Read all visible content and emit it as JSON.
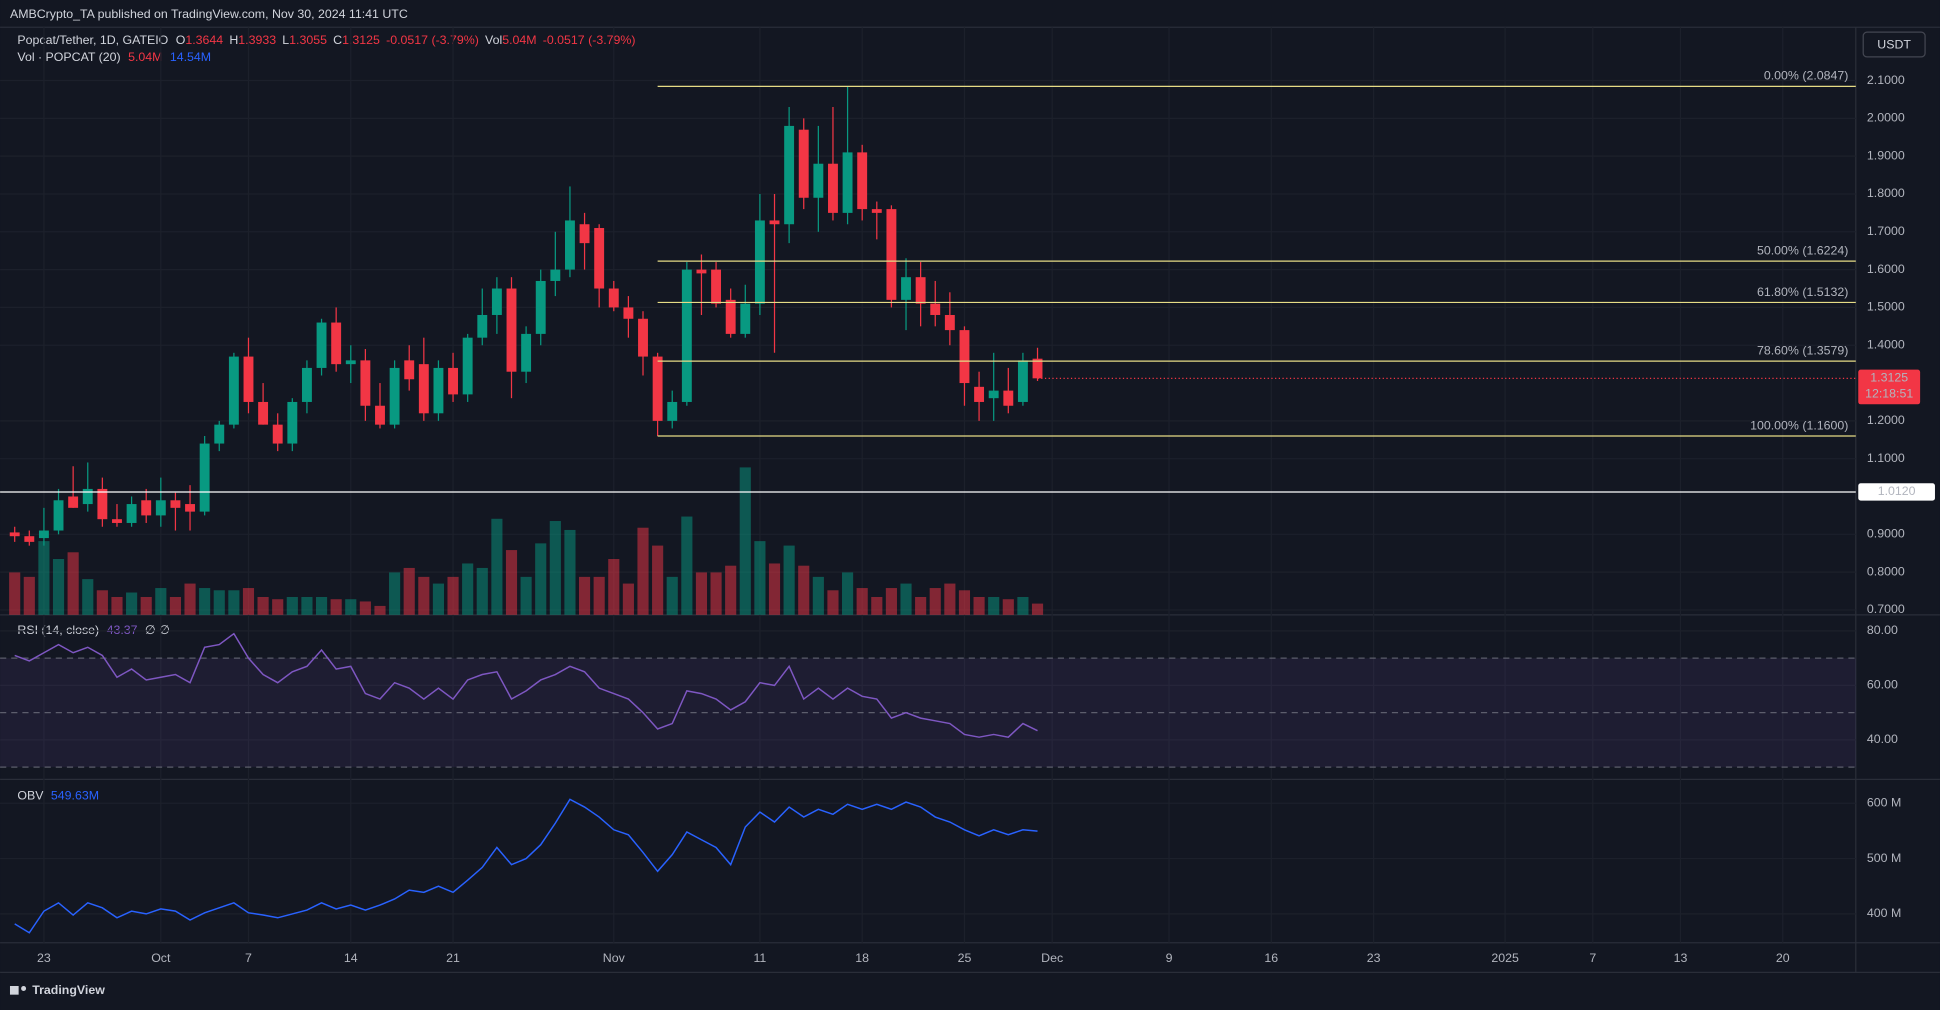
{
  "header": {
    "published": "AMBCrypto_TA published on TradingView.com, Nov 30, 2024 11:41 UTC",
    "brand": "TradingView"
  },
  "chart_data": [
    {
      "type": "candlestick",
      "title": "Popcat/Tether, 1D, GATEIO",
      "currency": "USDT",
      "ohlc_keys": [
        "O",
        "H",
        "L",
        "C"
      ],
      "change": "-0.0517 (-3.79%)",
      "volume_key": "Vol",
      "up_color": "#089981",
      "down_color": "#f23645",
      "x": [
        "2024-09-21",
        "2024-09-22",
        "2024-09-23",
        "2024-09-24",
        "2024-09-25",
        "2024-09-26",
        "2024-09-27",
        "2024-09-28",
        "2024-09-29",
        "2024-09-30",
        "2024-10-01",
        "2024-10-02",
        "2024-10-03",
        "2024-10-04",
        "2024-10-05",
        "2024-10-06",
        "2024-10-07",
        "2024-10-08",
        "2024-10-09",
        "2024-10-10",
        "2024-10-11",
        "2024-10-12",
        "2024-10-13",
        "2024-10-14",
        "2024-10-15",
        "2024-10-16",
        "2024-10-17",
        "2024-10-18",
        "2024-10-19",
        "2024-10-20",
        "2024-10-21",
        "2024-10-22",
        "2024-10-23",
        "2024-10-24",
        "2024-10-25",
        "2024-10-26",
        "2024-10-27",
        "2024-10-28",
        "2024-10-29",
        "2024-10-30",
        "2024-10-31",
        "2024-11-01",
        "2024-11-02",
        "2024-11-03",
        "2024-11-04",
        "2024-11-05",
        "2024-11-06",
        "2024-11-07",
        "2024-11-08",
        "2024-11-09",
        "2024-11-10",
        "2024-11-11",
        "2024-11-12",
        "2024-11-13",
        "2024-11-14",
        "2024-11-15",
        "2024-11-16",
        "2024-11-17",
        "2024-11-18",
        "2024-11-19",
        "2024-11-20",
        "2024-11-21",
        "2024-11-22",
        "2024-11-23",
        "2024-11-24",
        "2024-11-25",
        "2024-11-26",
        "2024-11-27",
        "2024-11-28",
        "2024-11-29",
        "2024-11-30"
      ],
      "open": [
        0.905,
        0.895,
        0.89,
        0.91,
        1.0,
        0.98,
        1.02,
        0.94,
        0.93,
        0.99,
        0.95,
        0.99,
        0.98,
        0.96,
        1.14,
        1.19,
        1.37,
        1.25,
        1.19,
        1.14,
        1.25,
        1.34,
        1.46,
        1.35,
        1.36,
        1.24,
        1.19,
        1.36,
        1.35,
        1.22,
        1.34,
        1.27,
        1.42,
        1.48,
        1.55,
        1.33,
        1.43,
        1.57,
        1.6,
        1.72,
        1.71,
        1.55,
        1.5,
        1.47,
        1.37,
        1.2,
        1.25,
        1.6,
        1.6,
        1.52,
        1.43,
        1.51,
        1.73,
        1.72,
        1.97,
        1.79,
        1.88,
        1.75,
        1.91,
        1.76,
        1.76,
        1.52,
        1.58,
        1.51,
        1.48,
        1.44,
        1.29,
        1.26,
        1.28,
        1.25,
        1.3644
      ],
      "high": [
        0.92,
        0.91,
        0.97,
        1.02,
        1.08,
        1.09,
        1.05,
        0.98,
        1.0,
        1.02,
        1.05,
        1.01,
        1.03,
        1.16,
        1.2,
        1.38,
        1.42,
        1.3,
        1.22,
        1.26,
        1.36,
        1.47,
        1.5,
        1.4,
        1.39,
        1.3,
        1.36,
        1.4,
        1.42,
        1.36,
        1.38,
        1.43,
        1.55,
        1.58,
        1.58,
        1.45,
        1.6,
        1.7,
        1.82,
        1.75,
        1.72,
        1.57,
        1.53,
        1.49,
        1.38,
        1.28,
        1.62,
        1.64,
        1.62,
        1.55,
        1.56,
        1.8,
        1.8,
        2.03,
        2.0,
        1.98,
        2.03,
        2.0847,
        1.93,
        1.78,
        1.77,
        1.63,
        1.62,
        1.57,
        1.54,
        1.45,
        1.33,
        1.38,
        1.34,
        1.38,
        1.3933
      ],
      "low": [
        0.88,
        0.87,
        0.87,
        0.9,
        0.97,
        0.96,
        0.92,
        0.92,
        0.92,
        0.93,
        0.92,
        0.91,
        0.91,
        0.95,
        1.12,
        1.18,
        1.22,
        1.19,
        1.12,
        1.12,
        1.22,
        1.32,
        1.33,
        1.3,
        1.2,
        1.18,
        1.18,
        1.28,
        1.2,
        1.2,
        1.25,
        1.25,
        1.4,
        1.43,
        1.26,
        1.3,
        1.4,
        1.53,
        1.58,
        1.6,
        1.5,
        1.49,
        1.42,
        1.32,
        1.16,
        1.18,
        1.24,
        1.48,
        1.5,
        1.42,
        1.42,
        1.48,
        1.38,
        1.67,
        1.76,
        1.7,
        1.73,
        1.72,
        1.73,
        1.68,
        1.5,
        1.44,
        1.45,
        1.45,
        1.4,
        1.24,
        1.2,
        1.2,
        1.22,
        1.24,
        1.3055
      ],
      "close": [
        0.895,
        0.88,
        0.91,
        0.99,
        0.97,
        1.02,
        0.94,
        0.93,
        0.98,
        0.95,
        0.99,
        0.97,
        0.96,
        1.14,
        1.19,
        1.37,
        1.25,
        1.19,
        1.14,
        1.25,
        1.34,
        1.46,
        1.35,
        1.36,
        1.24,
        1.19,
        1.34,
        1.31,
        1.22,
        1.34,
        1.27,
        1.42,
        1.48,
        1.55,
        1.33,
        1.43,
        1.57,
        1.6,
        1.73,
        1.67,
        1.55,
        1.5,
        1.47,
        1.37,
        1.2,
        1.25,
        1.6,
        1.59,
        1.51,
        1.43,
        1.51,
        1.73,
        1.72,
        1.98,
        1.79,
        1.88,
        1.75,
        1.91,
        1.76,
        1.75,
        1.52,
        1.58,
        1.51,
        1.48,
        1.44,
        1.3,
        1.25,
        1.28,
        1.24,
        1.36,
        1.3125
      ],
      "countdown": "12:18:51",
      "volume": {
        "name": "Vol · POPCAT (20)",
        "legend_value": "5.04M",
        "ma_legend_value": "14.54M",
        "ylim": [
          0,
          263
        ],
        "values": [
          19,
          17,
          33,
          25,
          28,
          16,
          11,
          8,
          10,
          8,
          12,
          8,
          14,
          12,
          11,
          11,
          12,
          8,
          7,
          8,
          8,
          8,
          7,
          7,
          6,
          4,
          19,
          21,
          17,
          14,
          17,
          23,
          21,
          43,
          29,
          17,
          32,
          42,
          38,
          17,
          17,
          25,
          14,
          39,
          31,
          17,
          44,
          19,
          19,
          22,
          66,
          33,
          23,
          31,
          22,
          17,
          11,
          19,
          12,
          8,
          12,
          14,
          8,
          12,
          14,
          11,
          8,
          8,
          7,
          8,
          5.04
        ]
      },
      "xlim": [
        "2024-09-20",
        "2025-01-25"
      ],
      "xticks": [
        {
          "value": "2024-09-23",
          "label": "23"
        },
        {
          "value": "2024-10-01",
          "label": "Oct"
        },
        {
          "value": "2024-10-07",
          "label": "7"
        },
        {
          "value": "2024-10-14",
          "label": "14"
        },
        {
          "value": "2024-10-21",
          "label": "21"
        },
        {
          "value": "2024-11-01",
          "label": "Nov"
        },
        {
          "value": "2024-11-11",
          "label": "11"
        },
        {
          "value": "2024-11-18",
          "label": "18"
        },
        {
          "value": "2024-11-25",
          "label": "25"
        },
        {
          "value": "2024-12-01",
          "label": "Dec"
        },
        {
          "value": "2024-12-09",
          "label": "9"
        },
        {
          "value": "2024-12-16",
          "label": "16"
        },
        {
          "value": "2024-12-23",
          "label": "23"
        },
        {
          "value": "2025-01-01",
          "label": "2025"
        },
        {
          "value": "2025-01-07",
          "label": "7"
        },
        {
          "value": "2025-01-13",
          "label": "13"
        },
        {
          "value": "2025-01-20",
          "label": "20"
        }
      ],
      "ylim": [
        0.687,
        2.241
      ],
      "yticks": [
        {
          "value": 2.1,
          "label": "2.1000"
        },
        {
          "value": 2.0,
          "label": "2.0000"
        },
        {
          "value": 1.9,
          "label": "1.9000"
        },
        {
          "value": 1.8,
          "label": "1.8000"
        },
        {
          "value": 1.7,
          "label": "1.7000"
        },
        {
          "value": 1.6,
          "label": "1.6000"
        },
        {
          "value": 1.5,
          "label": "1.5000"
        },
        {
          "value": 1.4,
          "label": "1.4000"
        },
        {
          "value": 1.2,
          "label": "1.2000"
        },
        {
          "value": 1.1,
          "label": "1.1000"
        },
        {
          "value": 0.9,
          "label": "0.9000"
        },
        {
          "value": 0.8,
          "label": "0.8000"
        },
        {
          "value": 0.7,
          "label": "0.7000"
        }
      ],
      "hlines": [
        {
          "value": 2.0847,
          "label": "0.00% (2.0847)",
          "start": "2024-11-04",
          "color": "#e6dc86"
        },
        {
          "value": 1.6224,
          "label": "50.00% (1.6224)",
          "start": "2024-11-04",
          "color": "#e6dc86"
        },
        {
          "value": 1.5132,
          "label": "61.80% (1.5132)",
          "start": "2024-11-04",
          "color": "#e6dc86"
        },
        {
          "value": 1.3579,
          "label": "78.60% (1.3579)",
          "start": "2024-11-04",
          "color": "#e6dc86"
        },
        {
          "value": 1.16,
          "label": "100.00% (1.1600)",
          "start": "2024-11-04",
          "color": "#e6dc86"
        },
        {
          "value": 1.012,
          "label": "1.0120",
          "color": "#ffffff"
        }
      ]
    },
    {
      "type": "line",
      "title": "RSI (14, close)",
      "legend_value": "43.37",
      "na_marks": "∅ ∅",
      "series": [
        {
          "name": "RSI",
          "color": "#7e57c2",
          "values": [
            71,
            69,
            72,
            75,
            72,
            74,
            71,
            63,
            66,
            62,
            63,
            64,
            61,
            74,
            75,
            79,
            70,
            64,
            61,
            65,
            67,
            73,
            66,
            67,
            57,
            55,
            61,
            59,
            55,
            59,
            55,
            62,
            64,
            65,
            55,
            58,
            62,
            64,
            67,
            65,
            59,
            57,
            55,
            50,
            44,
            46,
            58,
            57,
            55,
            51,
            54,
            61,
            60,
            67,
            55,
            59,
            55,
            59,
            56,
            55,
            48,
            50,
            48,
            47,
            46,
            42,
            41,
            42,
            41,
            46,
            43.37
          ]
        }
      ],
      "bands": [
        70,
        50,
        30
      ],
      "ylim": [
        25.5,
        85.9
      ],
      "yticks": [
        {
          "value": 80,
          "label": "80.00"
        },
        {
          "value": 60,
          "label": "60.00"
        },
        {
          "value": 40,
          "label": "40.00"
        }
      ]
    },
    {
      "type": "line",
      "title": "OBV",
      "legend_value": "549.63M",
      "series": [
        {
          "name": "OBV",
          "color": "#2962ff",
          "values": [
            382,
            366,
            405,
            420,
            398,
            420,
            411,
            393,
            405,
            400,
            409,
            405,
            389,
            402,
            411,
            420,
            402,
            398,
            393,
            400,
            407,
            420,
            409,
            416,
            407,
            416,
            427,
            443,
            439,
            450,
            439,
            461,
            484,
            520,
            489,
            500,
            525,
            564,
            607,
            593,
            575,
            552,
            543,
            511,
            477,
            507,
            548,
            534,
            520,
            489,
            557,
            584,
            566,
            593,
            575,
            589,
            580,
            598,
            589,
            598,
            589,
            602,
            593,
            575,
            566,
            552,
            541,
            552,
            543,
            552,
            549.63
          ]
        }
      ],
      "ylim": [
        348,
        643
      ],
      "yticks": [
        {
          "value": 600,
          "label": "600 M"
        },
        {
          "value": 500,
          "label": "500 M"
        },
        {
          "value": 400,
          "label": "400 M"
        }
      ]
    }
  ]
}
